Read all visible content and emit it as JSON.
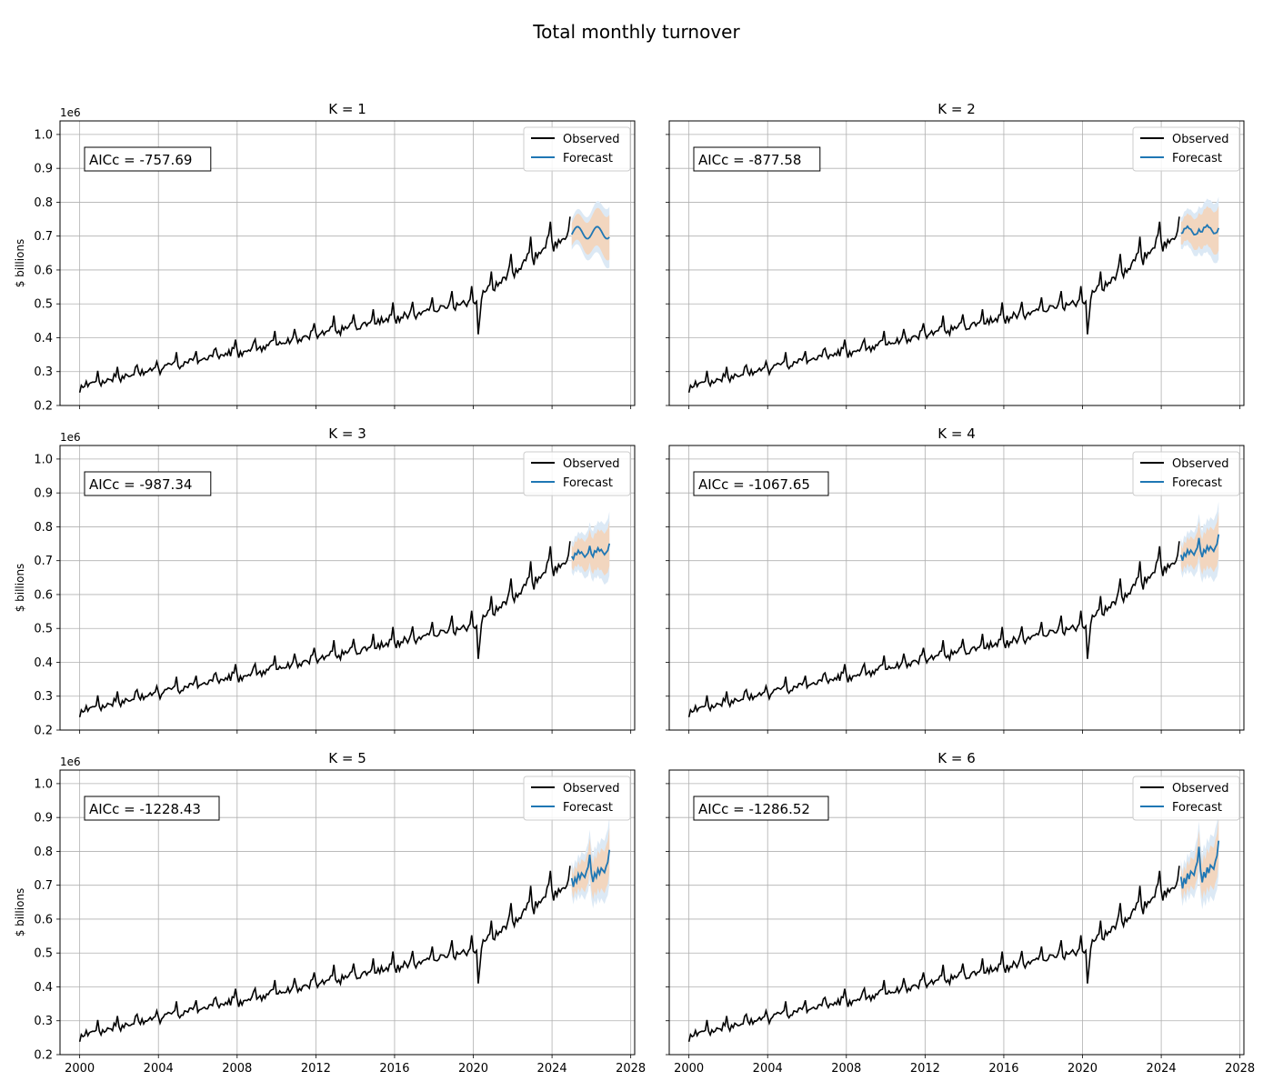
{
  "figure": {
    "title": "Total monthly turnover"
  },
  "legend": {
    "observed_label": "Observed",
    "forecast_label": "Forecast"
  },
  "axes": {
    "ylabel": "$ billions",
    "y_offset_label": "1e6",
    "x_ticks": [
      2000,
      2004,
      2008,
      2012,
      2016,
      2020,
      2024,
      2028
    ],
    "y_ticks": [
      0.2,
      0.3,
      0.4,
      0.5,
      0.6,
      0.7,
      0.8,
      0.9,
      1.0
    ],
    "xlim": [
      1999.0,
      2028.2
    ],
    "ylim": [
      0.2,
      1.04
    ]
  },
  "colors": {
    "observed": "#000000",
    "forecast": "#1f77b4",
    "pi80": "#f2d6bf",
    "pi95": "#dce9f5",
    "grid": "#b0b0b0"
  },
  "chart_data": [
    {
      "type": "line",
      "title": "K = 1",
      "annotation": "AICc = -757.69"
    },
    {
      "type": "line",
      "title": "K = 2",
      "annotation": "AICc = -877.58"
    },
    {
      "type": "line",
      "title": "K = 3",
      "annotation": "AICc = -987.34"
    },
    {
      "type": "line",
      "title": "K = 4",
      "annotation": "AICc = -1067.65"
    },
    {
      "type": "line",
      "title": "K = 5",
      "annotation": "AICc = -1228.43"
    },
    {
      "type": "line",
      "title": "K = 6",
      "annotation": "AICc = -1286.52"
    }
  ]
}
